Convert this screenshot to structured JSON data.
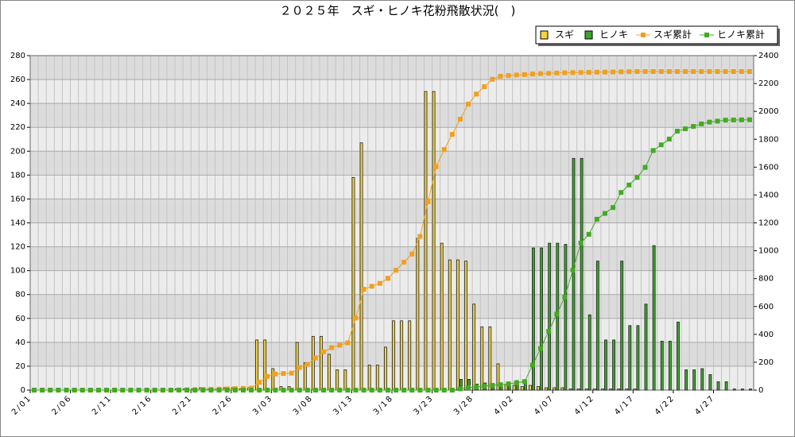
{
  "chart_data": {
    "type": "bar",
    "title": "２０２５年　スギ・ヒノキ花粉飛散状況(　)",
    "categories": [
      "2/01",
      null,
      null,
      null,
      null,
      "2/06",
      null,
      null,
      null,
      null,
      "2/11",
      null,
      null,
      null,
      null,
      "2/16",
      null,
      null,
      null,
      null,
      "2/21",
      null,
      null,
      null,
      null,
      "2/26",
      null,
      null,
      null,
      null,
      "3/03",
      null,
      null,
      null,
      null,
      "3/08",
      null,
      null,
      null,
      null,
      "3/13",
      null,
      null,
      null,
      null,
      "3/18",
      null,
      null,
      null,
      null,
      "3/23",
      null,
      null,
      null,
      null,
      "3/28",
      null,
      null,
      null,
      null,
      "4/02",
      null,
      null,
      null,
      null,
      "4/07",
      null,
      null,
      null,
      null,
      "4/12",
      null,
      null,
      null,
      null,
      "4/17",
      null,
      null,
      null,
      null,
      "4/22",
      null,
      null,
      null,
      null,
      "4/27",
      null,
      null,
      null,
      null
    ],
    "series": [
      {
        "name": "スギ",
        "type": "bar",
        "color": "#f5d33c",
        "values": [
          0,
          0,
          0,
          0,
          0,
          0,
          0,
          0,
          0,
          0,
          0,
          0,
          0,
          0,
          0,
          0,
          0,
          0,
          1,
          1,
          1,
          2,
          1,
          1,
          2,
          2,
          1,
          2,
          42,
          42,
          18,
          3,
          3,
          40,
          23,
          45,
          45,
          30,
          17,
          17,
          178,
          207,
          21,
          21,
          36,
          58,
          58,
          58,
          127,
          250,
          250,
          123,
          109,
          109,
          108,
          72,
          53,
          53,
          22,
          5,
          4,
          3,
          4,
          3,
          2,
          2,
          2,
          1,
          1,
          1,
          1,
          1,
          1,
          1,
          1,
          1,
          0,
          0,
          0,
          0,
          0,
          0,
          0,
          0,
          0,
          0,
          0,
          0,
          0,
          0
        ]
      },
      {
        "name": "ヒノキ",
        "type": "bar",
        "color": "#3aa52a",
        "values": [
          0,
          0,
          0,
          0,
          0,
          0,
          0,
          0,
          0,
          0,
          0,
          0,
          0,
          0,
          0,
          0,
          0,
          0,
          0,
          0,
          0,
          0,
          0,
          0,
          0,
          0,
          0,
          0,
          0,
          0,
          0,
          0,
          0,
          0,
          0,
          0,
          0,
          0,
          0,
          0,
          0,
          0,
          0,
          0,
          0,
          0,
          0,
          0,
          0,
          0,
          0,
          0,
          0,
          9,
          9,
          5,
          6,
          5,
          5,
          6,
          8,
          8,
          119,
          119,
          123,
          123,
          122,
          194,
          194,
          63,
          108,
          42,
          42,
          108,
          54,
          54,
          72,
          121,
          41,
          41,
          57,
          17,
          17,
          18,
          13,
          7,
          7,
          1,
          1,
          1
        ]
      },
      {
        "name": "スギ累計",
        "type": "line",
        "axis": "y2",
        "color": "#f0a020",
        "values": [
          0,
          0,
          0,
          0,
          0,
          0,
          0,
          0,
          0,
          0,
          0,
          0,
          0,
          0,
          0,
          0,
          0,
          0,
          1,
          2,
          3,
          5,
          6,
          7,
          9,
          11,
          12,
          14,
          56,
          98,
          116,
          119,
          122,
          162,
          185,
          230,
          275,
          305,
          322,
          339,
          517,
          724,
          745,
          766,
          802,
          860,
          918,
          976,
          1103,
          1353,
          1603,
          1726,
          1835,
          1944,
          2052,
          2124,
          2177,
          2230,
          2252,
          2257,
          2261,
          2264,
          2268,
          2271,
          2273,
          2275,
          2277,
          2278,
          2279,
          2280,
          2281,
          2282,
          2283,
          2284,
          2285,
          2286,
          2286,
          2286,
          2286,
          2286,
          2286,
          2286,
          2286,
          2286,
          2286,
          2286,
          2286,
          2286,
          2286,
          2286
        ]
      },
      {
        "name": "ヒノキ累計",
        "type": "line",
        "axis": "y2",
        "color": "#44aa22",
        "values": [
          0,
          0,
          0,
          0,
          0,
          0,
          0,
          0,
          0,
          0,
          0,
          0,
          0,
          0,
          0,
          0,
          0,
          0,
          0,
          0,
          0,
          0,
          0,
          0,
          0,
          0,
          0,
          0,
          0,
          0,
          0,
          0,
          0,
          0,
          0,
          0,
          0,
          0,
          0,
          0,
          0,
          0,
          0,
          0,
          0,
          0,
          0,
          0,
          0,
          0,
          0,
          0,
          0,
          9,
          18,
          23,
          29,
          34,
          39,
          45,
          53,
          61,
          180,
          299,
          422,
          545,
          667,
          861,
          1055,
          1118,
          1226,
          1268,
          1310,
          1418,
          1472,
          1526,
          1598,
          1719,
          1760,
          1801,
          1858,
          1875,
          1892,
          1910,
          1923,
          1930,
          1937,
          1938,
          1939,
          1940
        ]
      }
    ],
    "ylim": [
      0,
      280
    ],
    "yticks": [
      0,
      20,
      40,
      60,
      80,
      100,
      120,
      140,
      160,
      180,
      200,
      220,
      240,
      260,
      280
    ],
    "y2lim": [
      0,
      2400
    ],
    "y2ticks": [
      0,
      200,
      400,
      600,
      800,
      1000,
      1200,
      1400,
      1600,
      1800,
      2000,
      2200,
      2400
    ],
    "grid": true,
    "legend": "top-right"
  }
}
